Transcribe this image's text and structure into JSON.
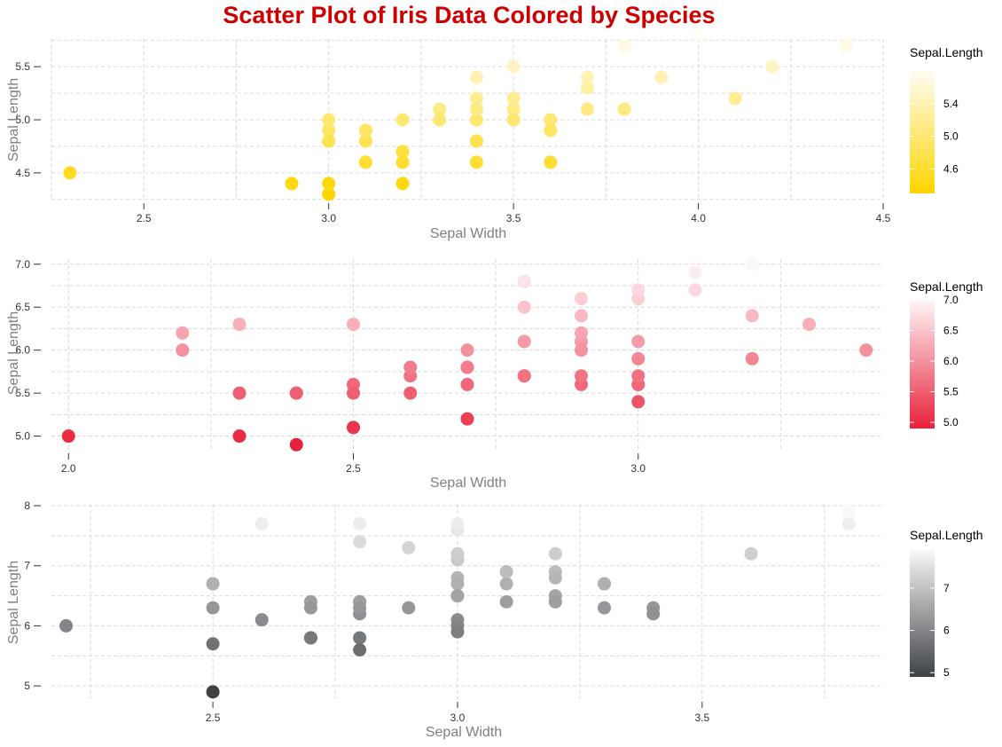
{
  "title": "Scatter Plot of Iris Data Colored by Species",
  "colors": {
    "title": "#cc0000",
    "setosa_low": "#ffd500",
    "setosa_high": "#fffdf5",
    "versicolor_low": "#e8213a",
    "versicolor_high": "#fff6f9",
    "virginica_low": "#3e4246",
    "virginica_high": "#f9f9f9",
    "grid": "#d9d9d9"
  },
  "chart_data": [
    {
      "type": "scatter",
      "xlabel": "Sepal Width",
      "ylabel": "Sepal Length",
      "legend_title": "Sepal.Length",
      "legend_position": "right",
      "grid": true,
      "xlim": [
        2.25,
        4.5
      ],
      "ylim": [
        4.24,
        5.76
      ],
      "x_ticks": [
        "2.5",
        "3.0",
        "3.5",
        "4.0",
        "4.5"
      ],
      "y_ticks": [
        "4.5",
        "5.0",
        "5.5"
      ],
      "legend_ticks": [
        "4.6",
        "5.0",
        "5.4"
      ],
      "color_range": [
        4.3,
        5.8
      ],
      "points": [
        [
          3.5,
          5.1
        ],
        [
          3.0,
          4.9
        ],
        [
          3.2,
          4.7
        ],
        [
          3.1,
          4.6
        ],
        [
          3.6,
          5.0
        ],
        [
          3.9,
          5.4
        ],
        [
          3.4,
          4.6
        ],
        [
          3.4,
          5.0
        ],
        [
          2.9,
          4.4
        ],
        [
          3.1,
          4.9
        ],
        [
          3.7,
          5.4
        ],
        [
          3.4,
          4.8
        ],
        [
          3.0,
          4.8
        ],
        [
          3.0,
          4.3
        ],
        [
          4.0,
          5.8
        ],
        [
          4.4,
          5.7
        ],
        [
          3.9,
          5.4
        ],
        [
          3.5,
          5.1
        ],
        [
          3.8,
          5.7
        ],
        [
          3.8,
          5.1
        ],
        [
          3.4,
          5.4
        ],
        [
          3.7,
          5.1
        ],
        [
          3.6,
          4.6
        ],
        [
          3.3,
          5.1
        ],
        [
          3.4,
          4.8
        ],
        [
          3.0,
          5.0
        ],
        [
          3.4,
          5.0
        ],
        [
          3.5,
          5.2
        ],
        [
          3.4,
          5.2
        ],
        [
          3.2,
          4.7
        ],
        [
          3.1,
          4.8
        ],
        [
          3.4,
          5.4
        ],
        [
          4.1,
          5.2
        ],
        [
          4.2,
          5.5
        ],
        [
          3.1,
          4.9
        ],
        [
          3.2,
          5.0
        ],
        [
          3.5,
          5.5
        ],
        [
          3.6,
          4.9
        ],
        [
          3.0,
          4.4
        ],
        [
          3.4,
          5.1
        ],
        [
          3.5,
          5.0
        ],
        [
          2.3,
          4.5
        ],
        [
          3.2,
          4.4
        ],
        [
          3.5,
          5.0
        ],
        [
          3.8,
          5.1
        ],
        [
          3.0,
          4.8
        ],
        [
          3.8,
          5.1
        ],
        [
          3.2,
          4.6
        ],
        [
          3.7,
          5.3
        ],
        [
          3.3,
          5.0
        ]
      ]
    },
    {
      "type": "scatter",
      "xlabel": "Sepal Width",
      "ylabel": "Sepal Length",
      "legend_title": "Sepal.Length",
      "legend_position": "right",
      "grid": true,
      "xlim": [
        1.97,
        3.43
      ],
      "ylim": [
        4.83,
        7.06
      ],
      "x_ticks": [
        "2.0",
        "2.5",
        "3.0"
      ],
      "y_ticks": [
        "5.0",
        "5.5",
        "6.0",
        "6.5",
        "7.0"
      ],
      "legend_ticks": [
        "5.0",
        "5.5",
        "6.0",
        "6.5",
        "7.0"
      ],
      "color_range": [
        4.9,
        7.0
      ],
      "points": [
        [
          3.2,
          7.0
        ],
        [
          3.2,
          6.4
        ],
        [
          3.1,
          6.9
        ],
        [
          2.3,
          5.5
        ],
        [
          2.8,
          6.5
        ],
        [
          2.8,
          5.7
        ],
        [
          3.3,
          6.3
        ],
        [
          2.4,
          4.9
        ],
        [
          2.9,
          6.6
        ],
        [
          2.7,
          5.2
        ],
        [
          2.0,
          5.0
        ],
        [
          3.0,
          5.9
        ],
        [
          2.2,
          6.0
        ],
        [
          2.9,
          6.1
        ],
        [
          2.9,
          5.6
        ],
        [
          3.1,
          6.7
        ],
        [
          3.0,
          5.6
        ],
        [
          2.7,
          5.8
        ],
        [
          2.2,
          6.2
        ],
        [
          2.5,
          5.6
        ],
        [
          3.2,
          5.9
        ],
        [
          2.8,
          6.1
        ],
        [
          2.5,
          6.3
        ],
        [
          2.8,
          6.1
        ],
        [
          2.9,
          6.4
        ],
        [
          3.0,
          6.6
        ],
        [
          2.8,
          6.8
        ],
        [
          3.0,
          6.7
        ],
        [
          2.9,
          6.0
        ],
        [
          2.6,
          5.7
        ],
        [
          2.4,
          5.5
        ],
        [
          2.4,
          5.5
        ],
        [
          2.7,
          5.8
        ],
        [
          2.7,
          6.0
        ],
        [
          3.0,
          5.4
        ],
        [
          3.4,
          6.0
        ],
        [
          3.1,
          6.7
        ],
        [
          2.3,
          6.3
        ],
        [
          3.0,
          5.6
        ],
        [
          2.5,
          5.5
        ],
        [
          2.6,
          5.5
        ],
        [
          3.0,
          6.1
        ],
        [
          2.6,
          5.8
        ],
        [
          2.3,
          5.0
        ],
        [
          2.7,
          5.6
        ],
        [
          3.0,
          5.7
        ],
        [
          2.9,
          5.7
        ],
        [
          2.9,
          6.2
        ],
        [
          2.5,
          5.1
        ],
        [
          2.8,
          5.7
        ]
      ]
    },
    {
      "type": "scatter",
      "xlabel": "Sepal Width",
      "ylabel": "Sepal Length",
      "legend_title": "Sepal.Length",
      "legend_position": "right",
      "grid": true,
      "xlim": [
        2.17,
        3.87
      ],
      "ylim": [
        4.78,
        8.03
      ],
      "x_ticks": [
        "2.5",
        "3.0",
        "3.5"
      ],
      "y_ticks": [
        "5",
        "6",
        "7",
        "8"
      ],
      "legend_ticks": [
        "5",
        "6",
        "7"
      ],
      "color_range": [
        4.9,
        7.9
      ],
      "points": [
        [
          3.3,
          6.3
        ],
        [
          2.7,
          5.8
        ],
        [
          3.0,
          7.1
        ],
        [
          2.9,
          6.3
        ],
        [
          3.0,
          6.5
        ],
        [
          3.0,
          7.6
        ],
        [
          2.5,
          4.9
        ],
        [
          2.9,
          7.3
        ],
        [
          2.5,
          6.7
        ],
        [
          3.6,
          7.2
        ],
        [
          3.2,
          6.5
        ],
        [
          2.7,
          6.4
        ],
        [
          3.0,
          6.8
        ],
        [
          2.5,
          5.7
        ],
        [
          2.8,
          5.8
        ],
        [
          3.2,
          6.4
        ],
        [
          3.0,
          6.5
        ],
        [
          3.8,
          7.7
        ],
        [
          2.6,
          7.7
        ],
        [
          2.2,
          6.0
        ],
        [
          3.2,
          6.9
        ],
        [
          2.8,
          5.6
        ],
        [
          2.8,
          7.7
        ],
        [
          2.7,
          6.3
        ],
        [
          3.3,
          6.7
        ],
        [
          3.2,
          7.2
        ],
        [
          2.8,
          6.2
        ],
        [
          3.0,
          6.1
        ],
        [
          2.8,
          6.4
        ],
        [
          3.0,
          7.2
        ],
        [
          2.8,
          7.4
        ],
        [
          3.8,
          7.9
        ],
        [
          2.8,
          6.4
        ],
        [
          2.8,
          6.3
        ],
        [
          2.6,
          6.1
        ],
        [
          3.0,
          7.7
        ],
        [
          3.4,
          6.3
        ],
        [
          3.1,
          6.4
        ],
        [
          3.0,
          6.0
        ],
        [
          3.1,
          6.9
        ],
        [
          3.1,
          6.7
        ],
        [
          3.1,
          6.9
        ],
        [
          2.7,
          5.8
        ],
        [
          3.2,
          6.8
        ],
        [
          3.3,
          6.7
        ],
        [
          3.0,
          6.7
        ],
        [
          2.5,
          6.3
        ],
        [
          3.0,
          6.5
        ],
        [
          3.4,
          6.2
        ],
        [
          3.0,
          5.9
        ]
      ]
    }
  ]
}
